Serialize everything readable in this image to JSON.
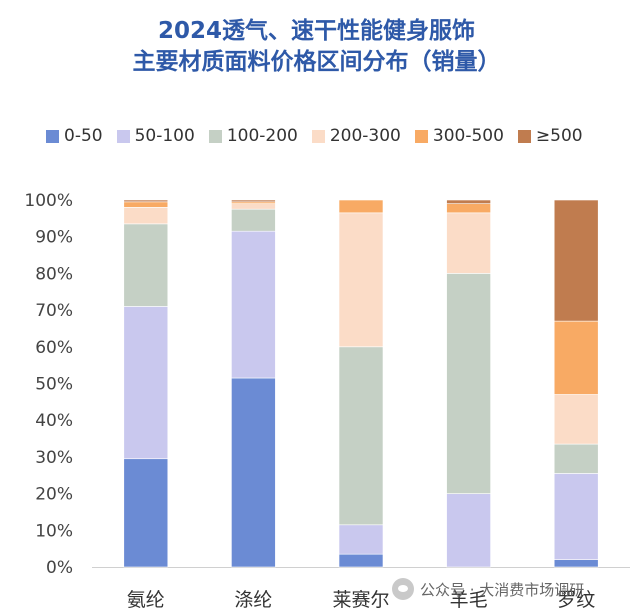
{
  "chart_data": {
    "type": "bar",
    "stacked": true,
    "title_line1": "2024透气、速干性能健身服饰",
    "title_line2": "主要材质面料价格区间分布（销量）",
    "categories": [
      "氨纶",
      "涤纶",
      "莱赛尔",
      "羊毛",
      "罗纹"
    ],
    "y_ticks": [
      "0%",
      "10%",
      "20%",
      "30%",
      "40%",
      "50%",
      "60%",
      "70%",
      "80%",
      "90%",
      "100%"
    ],
    "ylim": [
      0,
      100
    ],
    "legend_position": "top",
    "grid": false,
    "series": [
      {
        "name": "0-50",
        "color": "#6b8bd4",
        "values": [
          29.5,
          51.5,
          3.5,
          0,
          2
        ]
      },
      {
        "name": "50-100",
        "color": "#c9c8ee",
        "values": [
          41.5,
          40,
          8,
          20,
          23.5
        ]
      },
      {
        "name": "100-200",
        "color": "#c5d0c5",
        "values": [
          22.5,
          6,
          48.5,
          60,
          8
        ]
      },
      {
        "name": "200-300",
        "color": "#fbdcc7",
        "values": [
          4.5,
          1.5,
          36.5,
          16.5,
          13.5
        ]
      },
      {
        "name": "300-500",
        "color": "#f8aa64",
        "values": [
          1.5,
          0.5,
          3.5,
          2.5,
          20
        ]
      },
      {
        "name": "≥500",
        "color": "#c07c4f",
        "values": [
          0.5,
          0.5,
          0,
          1,
          33
        ]
      }
    ]
  },
  "watermark": {
    "text": "公众号 · 大消费市场调研",
    "icon": "wechat-icon"
  }
}
